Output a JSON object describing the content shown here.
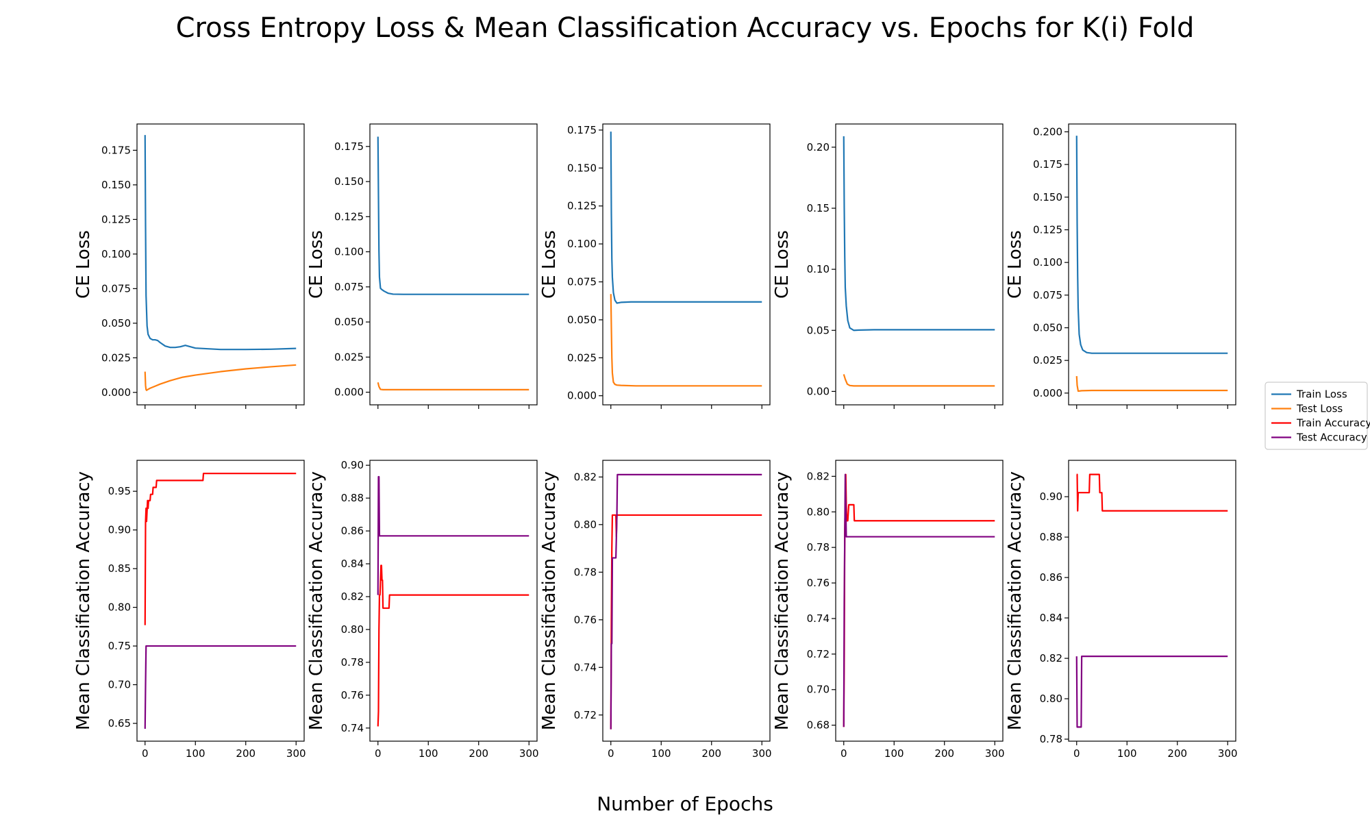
{
  "chart_data": {
    "type": "line",
    "title": "Cross Entropy Loss & Mean Classification Accuracy vs. Epochs for K(i) Fold",
    "xlabel": "Number of Epochs",
    "legend": {
      "placement": "right-center",
      "entries": [
        {
          "name": "Train Loss",
          "color": "#1f77b4"
        },
        {
          "name": "Test Loss",
          "color": "#ff7f0e"
        },
        {
          "name": "Train Accuracy",
          "color": "#ff0000"
        },
        {
          "name": "Test Accuracy",
          "color": "#800080"
        }
      ]
    },
    "grid": false,
    "shared_x": {
      "xlim": [
        -16,
        316
      ],
      "xticks": [
        0,
        100,
        200,
        300
      ]
    },
    "loss_panels": [
      {
        "ylabel": "CE Loss",
        "ylim": [
          -0.009,
          0.194
        ],
        "yticks": [
          0.0,
          0.025,
          0.05,
          0.075,
          0.1,
          0.125,
          0.15,
          0.175
        ],
        "ytick_labels": [
          "0.000",
          "0.025",
          "0.050",
          "0.075",
          "0.100",
          "0.125",
          "0.150",
          "0.175"
        ],
        "series": [
          {
            "name": "Train Loss",
            "color": "#1f77b4",
            "x": [
              0,
              1,
              2,
              4,
              6,
              10,
              15,
              20,
              25,
              30,
              40,
              50,
              60,
              70,
              80,
              100,
              150,
              200,
              250,
              300
            ],
            "y": [
              0.186,
              0.12,
              0.07,
              0.048,
              0.042,
              0.039,
              0.038,
              0.038,
              0.0375,
              0.036,
              0.0335,
              0.0325,
              0.0325,
              0.033,
              0.034,
              0.032,
              0.031,
              0.031,
              0.0312,
              0.0318
            ]
          },
          {
            "name": "Test Loss",
            "color": "#ff7f0e",
            "x": [
              0,
              1,
              2,
              3,
              5,
              10,
              20,
              30,
              50,
              75,
              100,
              150,
              200,
              250,
              300
            ],
            "y": [
              0.015,
              0.005,
              0.002,
              0.0015,
              0.002,
              0.003,
              0.0045,
              0.006,
              0.0085,
              0.011,
              0.0125,
              0.015,
              0.017,
              0.0185,
              0.0198
            ]
          }
        ]
      },
      {
        "ylabel": "CE Loss",
        "ylim": [
          -0.009,
          0.191
        ],
        "yticks": [
          0.0,
          0.025,
          0.05,
          0.075,
          0.1,
          0.125,
          0.15,
          0.175
        ],
        "ytick_labels": [
          "0.000",
          "0.025",
          "0.050",
          "0.075",
          "0.100",
          "0.125",
          "0.150",
          "0.175"
        ],
        "series": [
          {
            "name": "Train Loss",
            "color": "#1f77b4",
            "x": [
              0,
              1,
              2,
              3,
              5,
              8,
              12,
              20,
              30,
              50,
              100,
              200,
              300
            ],
            "y": [
              0.182,
              0.14,
              0.1,
              0.082,
              0.074,
              0.073,
              0.072,
              0.0705,
              0.0698,
              0.0697,
              0.0697,
              0.0697,
              0.0697
            ]
          },
          {
            "name": "Test Loss",
            "color": "#ff7f0e",
            "x": [
              0,
              2,
              5,
              10,
              300
            ],
            "y": [
              0.007,
              0.004,
              0.002,
              0.0018,
              0.0018
            ]
          }
        ]
      },
      {
        "ylabel": "CE Loss",
        "ylim": [
          -0.006,
          0.179
        ],
        "yticks": [
          0.0,
          0.025,
          0.05,
          0.075,
          0.1,
          0.125,
          0.15,
          0.175
        ],
        "ytick_labels": [
          "0.000",
          "0.025",
          "0.050",
          "0.075",
          "0.100",
          "0.125",
          "0.150",
          "0.175"
        ],
        "series": [
          {
            "name": "Train Loss",
            "color": "#1f77b4",
            "x": [
              0,
              1,
              2,
              3,
              5,
              8,
              12,
              20,
              40,
              300
            ],
            "y": [
              0.174,
              0.12,
              0.09,
              0.078,
              0.068,
              0.063,
              0.061,
              0.0615,
              0.0618,
              0.0618
            ]
          },
          {
            "name": "Test Loss",
            "color": "#ff7f0e",
            "x": [
              0,
              1,
              2,
              3,
              5,
              8,
              12,
              20,
              50,
              300
            ],
            "y": [
              0.067,
              0.045,
              0.025,
              0.015,
              0.009,
              0.0075,
              0.007,
              0.0068,
              0.0065,
              0.0065
            ]
          }
        ]
      },
      {
        "ylabel": "CE Loss",
        "ylim": [
          -0.011,
          0.219
        ],
        "yticks": [
          0.0,
          0.05,
          0.1,
          0.15,
          0.2
        ],
        "ytick_labels": [
          "0.00",
          "0.05",
          "0.10",
          "0.15",
          "0.20"
        ],
        "series": [
          {
            "name": "Train Loss",
            "color": "#1f77b4",
            "x": [
              0,
              1,
              2,
              3,
              5,
              8,
              12,
              20,
              30,
              60,
              300
            ],
            "y": [
              0.209,
              0.15,
              0.11,
              0.085,
              0.07,
              0.058,
              0.052,
              0.05,
              0.0502,
              0.0505,
              0.0505
            ]
          },
          {
            "name": "Test Loss",
            "color": "#ff7f0e",
            "x": [
              0,
              3,
              7,
              12,
              20,
              300
            ],
            "y": [
              0.014,
              0.01,
              0.006,
              0.0048,
              0.0045,
              0.0045
            ]
          }
        ]
      },
      {
        "ylabel": "CE Loss",
        "ylim": [
          -0.009,
          0.206
        ],
        "yticks": [
          0.0,
          0.025,
          0.05,
          0.075,
          0.1,
          0.125,
          0.15,
          0.175,
          0.2
        ],
        "ytick_labels": [
          "0.000",
          "0.025",
          "0.050",
          "0.075",
          "0.100",
          "0.125",
          "0.150",
          "0.175",
          "0.200"
        ],
        "series": [
          {
            "name": "Train Loss",
            "color": "#1f77b4",
            "x": [
              0,
              1,
              2,
              3,
              5,
              8,
              12,
              20,
              30,
              60,
              300
            ],
            "y": [
              0.197,
              0.13,
              0.09,
              0.065,
              0.045,
              0.037,
              0.033,
              0.031,
              0.0305,
              0.0305,
              0.0305
            ]
          },
          {
            "name": "Test Loss",
            "color": "#ff7f0e",
            "x": [
              0,
              1,
              3,
              10,
              30,
              300
            ],
            "y": [
              0.013,
              0.006,
              0.0015,
              0.0018,
              0.002,
              0.002
            ]
          }
        ]
      }
    ],
    "accuracy_panels": [
      {
        "ylabel": "Mean Classification Accuracy",
        "ylim": [
          0.627,
          0.99
        ],
        "yticks": [
          0.65,
          0.7,
          0.75,
          0.8,
          0.85,
          0.9,
          0.95
        ],
        "ytick_labels": [
          "0.65",
          "0.70",
          "0.75",
          "0.80",
          "0.85",
          "0.90",
          "0.95"
        ],
        "series": [
          {
            "name": "Train Accuracy",
            "color": "#ff0000",
            "x": [
              0,
              1,
              2,
              3,
              4,
              5,
              6,
              7,
              8,
              10,
              11,
              12,
              15,
              16,
              19,
              20,
              22,
              23,
              25,
              26,
              115,
              116,
              300
            ],
            "y": [
              0.777,
              0.91,
              0.928,
              0.911,
              0.925,
              0.938,
              0.928,
              0.938,
              0.938,
              0.938,
              0.946,
              0.946,
              0.946,
              0.955,
              0.955,
              0.955,
              0.955,
              0.964,
              0.964,
              0.964,
              0.964,
              0.973,
              0.973
            ]
          },
          {
            "name": "Test Accuracy",
            "color": "#800080",
            "x": [
              0,
              1,
              2,
              3,
              300
            ],
            "y": [
              0.643,
              0.7,
              0.75,
              0.75,
              0.75
            ]
          }
        ]
      },
      {
        "ylabel": "Mean Classification Accuracy",
        "ylim": [
          0.732,
          0.903
        ],
        "yticks": [
          0.74,
          0.76,
          0.78,
          0.8,
          0.82,
          0.84,
          0.86,
          0.88,
          0.9
        ],
        "ytick_labels": [
          "0.74",
          "0.76",
          "0.78",
          "0.80",
          "0.82",
          "0.84",
          "0.86",
          "0.88",
          "0.90"
        ],
        "series": [
          {
            "name": "Train Accuracy",
            "color": "#ff0000",
            "x": [
              0,
              1,
              2,
              3,
              4,
              5,
              6,
              7,
              8,
              9,
              10,
              12,
              15,
              22,
              23,
              24,
              300
            ],
            "y": [
              0.741,
              0.75,
              0.8,
              0.821,
              0.821,
              0.83,
              0.839,
              0.839,
              0.83,
              0.83,
              0.813,
              0.813,
              0.813,
              0.813,
              0.821,
              0.821,
              0.821
            ]
          },
          {
            "name": "Test Accuracy",
            "color": "#800080",
            "x": [
              0,
              1,
              2,
              3,
              4,
              5,
              300
            ],
            "y": [
              0.821,
              0.893,
              0.893,
              0.857,
              0.857,
              0.857,
              0.857
            ]
          }
        ]
      },
      {
        "ylabel": "Mean Classification Accuracy",
        "ylim": [
          0.709,
          0.827
        ],
        "yticks": [
          0.72,
          0.74,
          0.76,
          0.78,
          0.8,
          0.82
        ],
        "ytick_labels": [
          "0.72",
          "0.74",
          "0.76",
          "0.78",
          "0.80",
          "0.82"
        ],
        "series": [
          {
            "name": "Train Accuracy",
            "color": "#ff0000",
            "x": [
              0,
              1,
              2,
              3,
              4,
              10,
              11,
              12,
              13,
              14,
              15,
              300
            ],
            "y": [
              0.714,
              0.76,
              0.79,
              0.804,
              0.804,
              0.804,
              0.795,
              0.804,
              0.804,
              0.804,
              0.804,
              0.804
            ]
          },
          {
            "name": "Test Accuracy",
            "color": "#800080",
            "x": [
              0,
              1,
              2,
              3,
              4,
              5,
              6,
              10,
              11,
              12,
              13,
              14,
              15,
              300
            ],
            "y": [
              0.714,
              0.75,
              0.75,
              0.786,
              0.786,
              0.786,
              0.786,
              0.786,
              0.795,
              0.804,
              0.821,
              0.821,
              0.821,
              0.821
            ]
          }
        ]
      },
      {
        "ylabel": "Mean Classification Accuracy",
        "ylim": [
          0.671,
          0.829
        ],
        "yticks": [
          0.68,
          0.7,
          0.72,
          0.74,
          0.76,
          0.78,
          0.8,
          0.82
        ],
        "ytick_labels": [
          "0.68",
          "0.70",
          "0.72",
          "0.74",
          "0.76",
          "0.78",
          "0.80",
          "0.82"
        ],
        "series": [
          {
            "name": "Train Accuracy",
            "color": "#ff0000",
            "x": [
              0,
              1,
              2,
              3,
              4,
              5,
              6,
              8,
              10,
              11,
              20,
              21,
              300
            ],
            "y": [
              0.679,
              0.72,
              0.79,
              0.804,
              0.821,
              0.804,
              0.795,
              0.795,
              0.804,
              0.804,
              0.804,
              0.795,
              0.795
            ]
          },
          {
            "name": "Test Accuracy",
            "color": "#800080",
            "x": [
              0,
              1,
              2,
              3,
              4,
              5,
              6,
              7,
              300
            ],
            "y": [
              0.679,
              0.75,
              0.786,
              0.821,
              0.804,
              0.786,
              0.786,
              0.786,
              0.786
            ]
          }
        ]
      },
      {
        "ylabel": "Mean Classification Accuracy",
        "ylim": [
          0.779,
          0.918
        ],
        "yticks": [
          0.78,
          0.8,
          0.82,
          0.84,
          0.86,
          0.88,
          0.9
        ],
        "ytick_labels": [
          "0.78",
          "0.80",
          "0.82",
          "0.84",
          "0.86",
          "0.88",
          "0.90"
        ],
        "series": [
          {
            "name": "Train Accuracy",
            "color": "#ff0000",
            "x": [
              0,
              1,
              2,
              3,
              4,
              10,
              20,
              25,
              26,
              40,
              45,
              46,
              50,
              51,
              52,
              300
            ],
            "y": [
              0.911,
              0.911,
              0.893,
              0.902,
              0.902,
              0.902,
              0.902,
              0.902,
              0.911,
              0.911,
              0.911,
              0.902,
              0.902,
              0.893,
              0.893,
              0.893
            ]
          },
          {
            "name": "Test Accuracy",
            "color": "#800080",
            "x": [
              0,
              1,
              2,
              3,
              9,
              10,
              300
            ],
            "y": [
              0.821,
              0.786,
              0.786,
              0.786,
              0.786,
              0.821,
              0.821
            ]
          }
        ]
      }
    ]
  }
}
